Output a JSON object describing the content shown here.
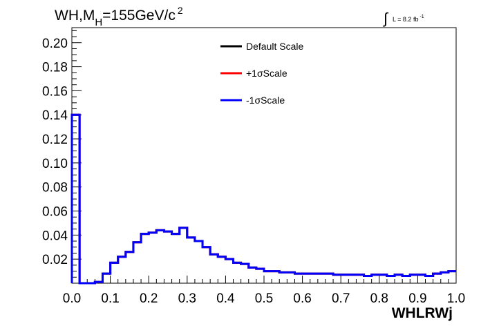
{
  "chart_data": {
    "type": "line",
    "title_main": "WH,M",
    "title_sub": "H",
    "title_rest": "=155GeV/c",
    "title_sup": "2",
    "lumi_main": "L = 8.2 fb",
    "lumi_sup": "-1",
    "xlabel": "WHLRWj",
    "ylabel": "",
    "xlim": [
      0.0,
      1.0
    ],
    "ylim": [
      0.0,
      0.2125
    ],
    "x_ticks": [
      "0.0",
      "0.1",
      "0.2",
      "0.3",
      "0.4",
      "0.5",
      "0.6",
      "0.7",
      "0.8",
      "0.9",
      "1.0"
    ],
    "y_ticks": [
      "0.02",
      "0.04",
      "0.06",
      "0.08",
      "0.10",
      "0.12",
      "0.14",
      "0.16",
      "0.18",
      "0.20"
    ],
    "bin_width": 0.02,
    "series": [
      {
        "name": "Default Scale",
        "color": "#000000",
        "values": [
          0.14,
          0.0,
          0.0,
          0.001,
          0.008,
          0.017,
          0.022,
          0.026,
          0.034,
          0.041,
          0.042,
          0.044,
          0.043,
          0.041,
          0.046,
          0.038,
          0.035,
          0.03,
          0.024,
          0.022,
          0.02,
          0.017,
          0.016,
          0.013,
          0.012,
          0.01,
          0.01,
          0.009,
          0.009,
          0.008,
          0.008,
          0.008,
          0.008,
          0.008,
          0.007,
          0.007,
          0.007,
          0.007,
          0.006,
          0.007,
          0.007,
          0.006,
          0.007,
          0.006,
          0.007,
          0.007,
          0.006,
          0.008,
          0.009,
          0.01,
          0.011,
          0.013,
          0.016
        ]
      },
      {
        "name": "+1σScale",
        "color": "#ff0000",
        "values": [
          0.14,
          0.0,
          0.0,
          0.001,
          0.008,
          0.017,
          0.022,
          0.026,
          0.034,
          0.041,
          0.042,
          0.044,
          0.043,
          0.041,
          0.046,
          0.038,
          0.035,
          0.03,
          0.024,
          0.022,
          0.02,
          0.017,
          0.016,
          0.013,
          0.012,
          0.01,
          0.01,
          0.009,
          0.009,
          0.008,
          0.008,
          0.008,
          0.008,
          0.008,
          0.007,
          0.007,
          0.007,
          0.007,
          0.006,
          0.007,
          0.007,
          0.006,
          0.007,
          0.006,
          0.007,
          0.007,
          0.006,
          0.008,
          0.009,
          0.01,
          0.011,
          0.013,
          0.016
        ]
      },
      {
        "name": "-1σScale",
        "color": "#0000ff",
        "values": [
          0.14,
          0.0,
          0.0,
          0.001,
          0.008,
          0.017,
          0.022,
          0.026,
          0.034,
          0.041,
          0.042,
          0.044,
          0.043,
          0.041,
          0.046,
          0.038,
          0.035,
          0.03,
          0.024,
          0.022,
          0.02,
          0.017,
          0.016,
          0.013,
          0.012,
          0.01,
          0.01,
          0.009,
          0.009,
          0.008,
          0.008,
          0.008,
          0.008,
          0.008,
          0.007,
          0.007,
          0.007,
          0.007,
          0.006,
          0.007,
          0.007,
          0.006,
          0.007,
          0.006,
          0.007,
          0.007,
          0.006,
          0.008,
          0.009,
          0.01,
          0.011,
          0.013,
          0.016
        ]
      }
    ],
    "legend_position": "top-center",
    "grid": false
  }
}
